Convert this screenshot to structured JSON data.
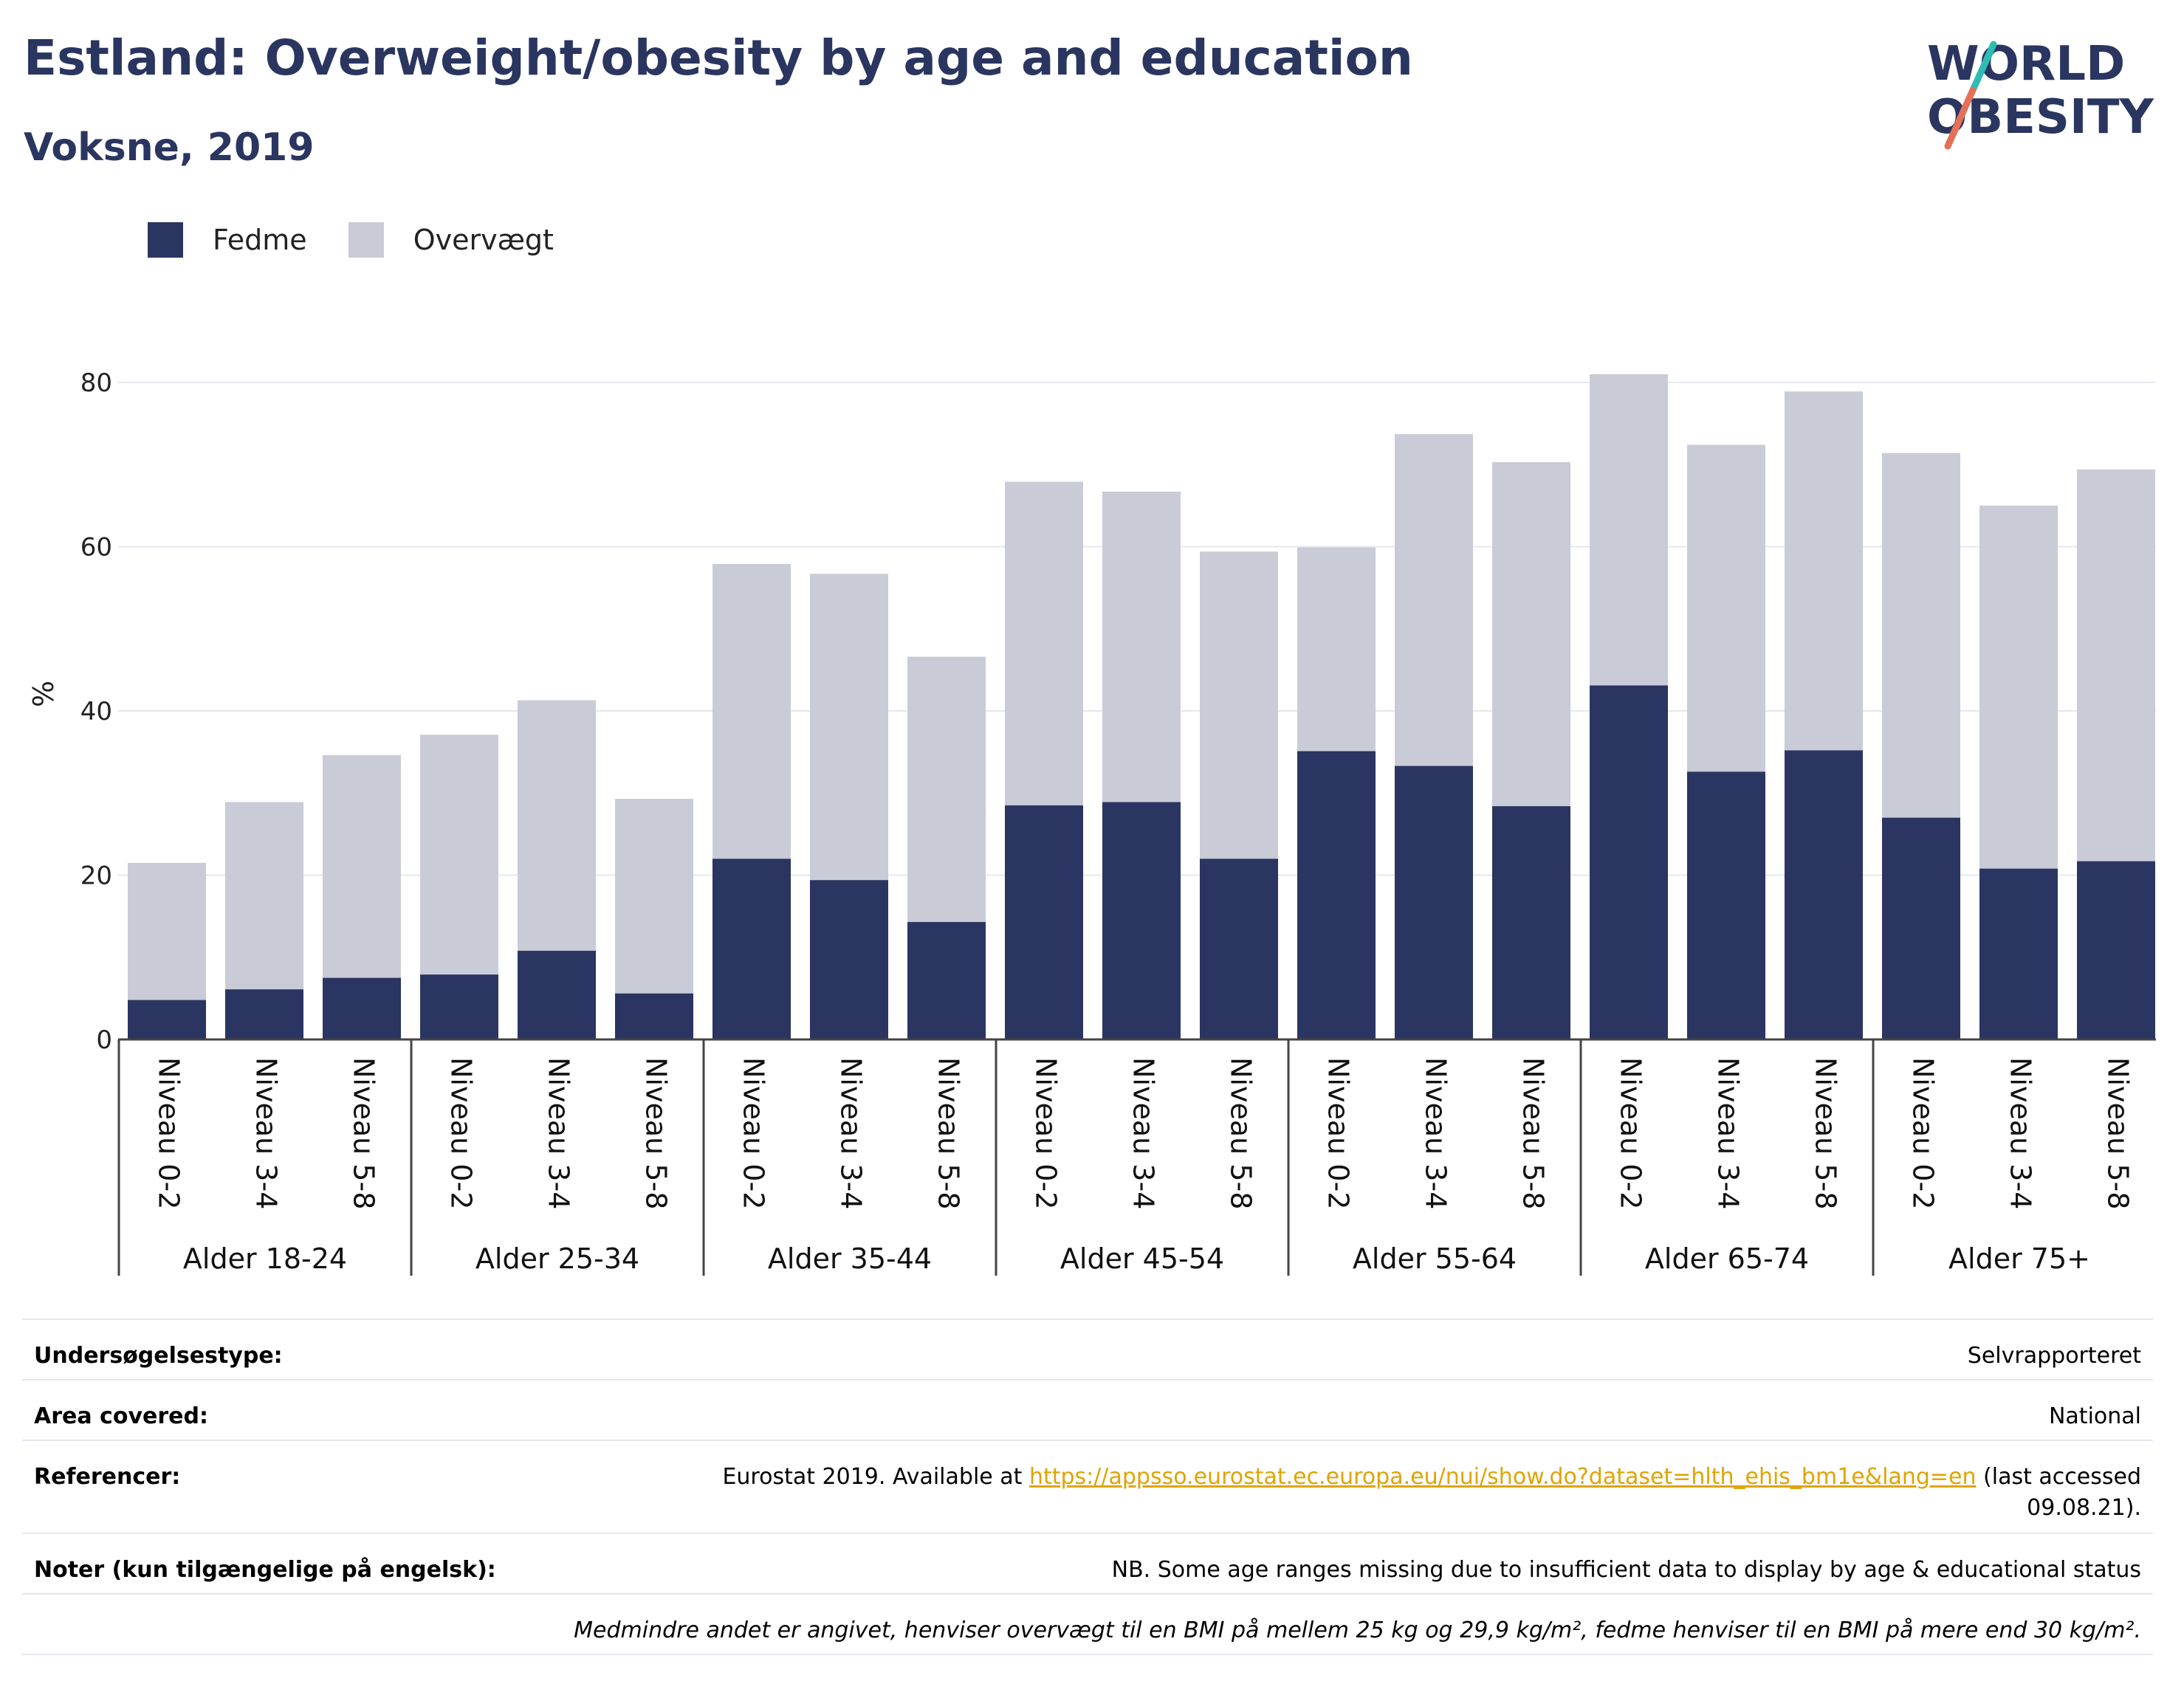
{
  "header": {
    "title": "Estland: Overweight/obesity by age and education",
    "subtitle": "Voksne, 2019"
  },
  "logo": {
    "line1": "WORLD",
    "line2": "OBESITY"
  },
  "colors": {
    "fedme": "#2a3562",
    "overvaegt": "#c9cbd6",
    "title": "#2a3560",
    "logo_teal": "#2fbcb4",
    "logo_coral": "#e4705a",
    "link": "#e0a400"
  },
  "legend": [
    {
      "label": "Fedme",
      "color": "#2a3562"
    },
    {
      "label": "Overvægt",
      "color": "#c9cbd6"
    }
  ],
  "chart_data": {
    "type": "bar",
    "stacked": true,
    "ylabel": "%",
    "ylim": [
      0,
      90
    ],
    "yticks": [
      0,
      20,
      40,
      60,
      80
    ],
    "grid": true,
    "legend_position": "top-left",
    "groups": [
      {
        "label": "Alder 18-24",
        "categories": [
          "Niveau 0-2",
          "Niveau 3-4",
          "Niveau 5-8"
        ],
        "fedme": [
          4.8,
          6.1,
          7.5
        ],
        "overvaegt": [
          16.7,
          22.8,
          27.1
        ]
      },
      {
        "label": "Alder 25-34",
        "categories": [
          "Niveau 0-2",
          "Niveau 3-4",
          "Niveau 5-8"
        ],
        "fedme": [
          7.9,
          10.8,
          5.6
        ],
        "overvaegt": [
          29.2,
          30.5,
          23.7
        ]
      },
      {
        "label": "Alder 35-44",
        "categories": [
          "Niveau 0-2",
          "Niveau 3-4",
          "Niveau 5-8"
        ],
        "fedme": [
          22.0,
          19.4,
          14.3
        ],
        "overvaegt": [
          35.9,
          37.3,
          32.3
        ]
      },
      {
        "label": "Alder 45-54",
        "categories": [
          "Niveau 0-2",
          "Niveau 3-4",
          "Niveau 5-8"
        ],
        "fedme": [
          28.5,
          28.9,
          22.0
        ],
        "overvaegt": [
          39.4,
          37.8,
          37.4
        ]
      },
      {
        "label": "Alder 55-64",
        "categories": [
          "Niveau 0-2",
          "Niveau 3-4",
          "Niveau 5-8"
        ],
        "fedme": [
          35.1,
          33.3,
          28.4
        ],
        "overvaegt": [
          24.8,
          40.4,
          41.9
        ]
      },
      {
        "label": "Alder 65-74",
        "categories": [
          "Niveau 0-2",
          "Niveau 3-4",
          "Niveau 5-8"
        ],
        "fedme": [
          43.1,
          32.6,
          35.2
        ],
        "overvaegt": [
          37.9,
          39.8,
          43.7
        ]
      },
      {
        "label": "Alder 75+",
        "categories": [
          "Niveau 0-2",
          "Niveau 3-4",
          "Niveau 5-8"
        ],
        "fedme": [
          27.0,
          20.8,
          21.7
        ],
        "overvaegt": [
          44.4,
          44.2,
          47.7
        ]
      }
    ]
  },
  "info": {
    "survey": {
      "label": "Undersøgelsestype:",
      "value": "Selvrapporteret"
    },
    "area": {
      "label": "Area covered:",
      "value": "National"
    },
    "references": {
      "label": "Referencer:",
      "prefix": "Eurostat 2019. Available at ",
      "link": "https://appsso.eurostat.ec.europa.eu/nui/show.do?dataset=hlth_ehis_bm1e&lang=en",
      "suffix_line1": " (last accessed",
      "suffix_line2": "09.08.21)."
    },
    "notes": {
      "label": "Noter (kun tilgængelige på engelsk):",
      "value": "NB. Some age ranges missing due to insufficient data to display by age & educational status"
    },
    "definition": "Medmindre andet er angivet, henviser overvægt til en BMI på mellem 25 kg og 29,9 kg/m², fedme henviser til en BMI på mere end 30 kg/m²."
  }
}
